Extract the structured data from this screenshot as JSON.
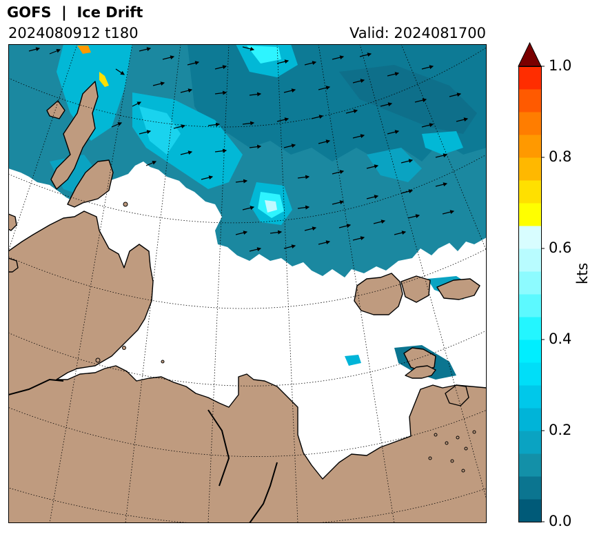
{
  "header": {
    "title": "GOFS  |  Ice Drift",
    "run_info": "2024080912 t180",
    "valid_label": "Valid: 2024081700"
  },
  "colors": {
    "land": "#bf9b7f",
    "open_water": "#ffffff",
    "coastline": "#000000",
    "gridline": "#000000",
    "arrow": "#000000",
    "ice_base": "#1d8ba3"
  },
  "map": {
    "layers": [
      "sea-ice-drift-speed",
      "land",
      "coastline",
      "graticule",
      "drift-vectors"
    ]
  },
  "colorbar": {
    "unit": "kts",
    "min": 0.0,
    "max": 1.0,
    "extend": "max",
    "levels": [
      0.0,
      0.05,
      0.1,
      0.15,
      0.2,
      0.25,
      0.3,
      0.35,
      0.4,
      0.45,
      0.5,
      0.55,
      0.6,
      0.65,
      0.7,
      0.75,
      0.8,
      0.85,
      0.9,
      0.95,
      1.0
    ],
    "colors": [
      "#005a78",
      "#0b7590",
      "#1390a8",
      "#0aa3c2",
      "#00b4d8",
      "#00c8ea",
      "#00def8",
      "#00eeff",
      "#23f6ff",
      "#5cf9ff",
      "#8dfbff",
      "#b8fcff",
      "#d8fdff",
      "#ffff00",
      "#ffe000",
      "#ffb800",
      "#ff9900",
      "#ff7d00",
      "#ff5a00",
      "#ff2d00",
      "#d70000",
      "#a80000",
      "#7a0000"
    ],
    "extend_color": "#7a0000",
    "ticks": [
      {
        "value": 0.0,
        "label": "0.0"
      },
      {
        "value": 0.2,
        "label": "0.2"
      },
      {
        "value": 0.4,
        "label": "0.4"
      },
      {
        "value": 0.6,
        "label": "0.6"
      },
      {
        "value": 0.8,
        "label": "0.8"
      },
      {
        "value": 1.0,
        "label": "1.0"
      }
    ]
  }
}
